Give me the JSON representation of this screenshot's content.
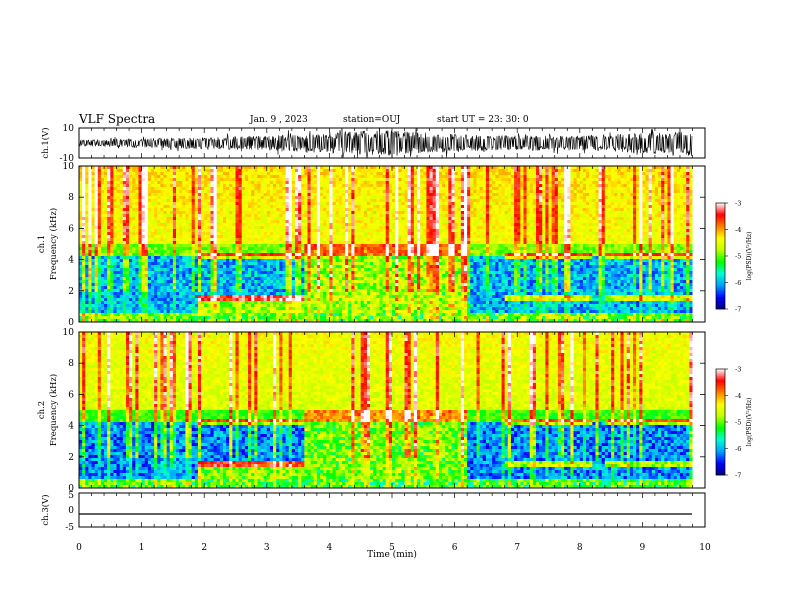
{
  "header": {
    "title": "VLF Spectra",
    "date": "Jan. 9 , 2023",
    "station": "station=OUJ",
    "start": "start  UT =   23: 30: 0"
  },
  "chart_data": [
    {
      "type": "line",
      "panel": "ch1-waveform",
      "ylabel": "ch.1(V)",
      "ylim": [
        -10,
        10
      ],
      "ytick_labels": [
        "10",
        "-10"
      ],
      "xlim": [
        0,
        10
      ],
      "series": [
        {
          "x": [
            0,
            1,
            2,
            3,
            3.6,
            4,
            4.5,
            5,
            5.5,
            6,
            6.5,
            7,
            7.5,
            8,
            8.5,
            9,
            9.5,
            9.8
          ],
          "y": [
            0,
            0,
            0,
            0,
            0,
            0,
            0,
            0,
            0,
            0,
            0,
            0,
            0,
            0,
            0,
            0,
            0,
            0
          ],
          "envelope": [
            2,
            3,
            4,
            5,
            6,
            7,
            8,
            9,
            7,
            6,
            5,
            5,
            5,
            5,
            6,
            7,
            7,
            9
          ]
        }
      ]
    },
    {
      "type": "heatmap",
      "panel": "ch1-spectrogram",
      "ylabel": "ch.1\nFrequency (kHz)",
      "ylim": [
        0,
        10
      ],
      "ytick_labels": [
        "0",
        "2",
        "4",
        "6",
        "8",
        "10"
      ],
      "xlim": [
        0,
        9.8
      ],
      "colorbar": {
        "label": "log(PSD)(V²/Hz)",
        "range": [
          -7,
          -3
        ],
        "tick_labels": [
          "-3",
          "-4",
          "-5",
          "-6",
          "-7"
        ]
      }
    },
    {
      "type": "heatmap",
      "panel": "ch2-spectrogram",
      "ylabel": "ch.2\nFrequency (kHz)",
      "ylim": [
        0,
        10
      ],
      "ytick_labels": [
        "0",
        "2",
        "4",
        "6",
        "8",
        "10"
      ],
      "xlim": [
        0,
        9.8
      ],
      "colorbar": {
        "label": "log(PSD)(V²/Hz)",
        "range": [
          -7,
          -3
        ],
        "tick_labels": [
          "-3",
          "-4",
          "-5",
          "-6",
          "-7"
        ]
      }
    },
    {
      "type": "line",
      "panel": "ch3-waveform",
      "ylabel": "ch.3(V)",
      "ylim": [
        -5,
        5
      ],
      "ytick_labels": [
        "5",
        "0",
        "-5"
      ],
      "xlim": [
        0,
        10
      ],
      "series": [
        {
          "x": [
            0,
            9.8
          ],
          "y": [
            -1.5,
            -1.5
          ]
        }
      ]
    }
  ],
  "xaxis": {
    "label": "Time (min)",
    "ticks": [
      0,
      1,
      2,
      3,
      4,
      5,
      6,
      7,
      8,
      9,
      10
    ],
    "tick_labels": [
      "0",
      "1",
      "2",
      "3",
      "4",
      "5",
      "6",
      "7",
      "8",
      "9",
      "10"
    ]
  },
  "colors": {
    "scale": [
      "#000080",
      "#0000ff",
      "#00a0ff",
      "#00ffd0",
      "#00ff00",
      "#c0ff00",
      "#ffff00",
      "#ff8000",
      "#ff0000",
      "#ffffff"
    ]
  }
}
